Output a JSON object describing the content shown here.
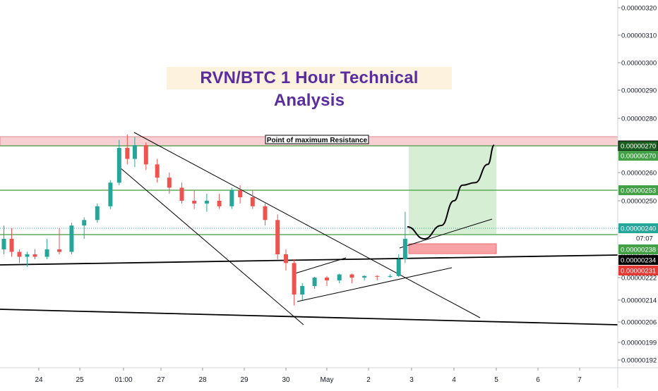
{
  "chart_data": {
    "type": "candlestick",
    "title": "RVN/BTC 1 Hour Technical Analysis",
    "annotation": "Point of maximum Resistance",
    "countdown": "07:07",
    "xlim_labels_note": "x axis ticks shown as printed",
    "x_ticks": [
      "24",
      "25",
      "01:00",
      "27",
      "28",
      "29",
      "30",
      "May",
      "2",
      "3",
      "4",
      "5",
      "6",
      "7"
    ],
    "y_ticks": [
      "0.00000320",
      "0.00000310",
      "0.00000300",
      "0.00000290",
      "0.00000280",
      "0.00000270",
      "0.00000260",
      "0.00000250",
      "0.00000240",
      "0.00000230",
      "0.00000222",
      "0.00000214",
      "0.00000206",
      "0.00000199",
      "0.00000192"
    ],
    "price_labels": [
      {
        "text": "0.00000270",
        "style": "resistance-dark"
      },
      {
        "text": "0.00000270",
        "style": "green"
      },
      {
        "text": "0.00000253",
        "style": "green"
      },
      {
        "text": "0.00000240",
        "style": "teal"
      },
      {
        "text": "0.00000238",
        "style": "green"
      },
      {
        "text": "0.00000234",
        "style": "black"
      },
      {
        "text": "0.00000231",
        "style": "red"
      }
    ],
    "resistance_zone": [
      2.7e-06,
      2.7e-06
    ],
    "horizontal_levels": [
      2.7e-06,
      2.53e-06,
      2.4e-06,
      2.38e-06
    ],
    "current_price": 2.4e-06,
    "candles": [
      {
        "day": 23.1,
        "o": 2.38,
        "h": 2.41,
        "l": 2.36,
        "c": 2.39
      },
      {
        "day": 23.3,
        "o": 2.39,
        "h": 2.4,
        "l": 2.35,
        "c": 2.37
      },
      {
        "day": 23.5,
        "o": 2.37,
        "h": 2.38,
        "l": 2.33,
        "c": 2.35
      },
      {
        "day": 23.7,
        "o": 2.35,
        "h": 2.37,
        "l": 2.32,
        "c": 2.36
      },
      {
        "day": 23.9,
        "o": 2.36,
        "h": 2.38,
        "l": 2.34,
        "c": 2.35
      },
      {
        "day": 24.2,
        "o": 2.35,
        "h": 2.39,
        "l": 2.34,
        "c": 2.38
      },
      {
        "day": 24.5,
        "o": 2.38,
        "h": 2.4,
        "l": 2.36,
        "c": 2.37
      },
      {
        "day": 24.8,
        "o": 2.37,
        "h": 2.42,
        "l": 2.36,
        "c": 2.41
      },
      {
        "day": 25.1,
        "o": 2.41,
        "h": 2.44,
        "l": 2.39,
        "c": 2.43
      },
      {
        "day": 25.4,
        "o": 2.43,
        "h": 2.49,
        "l": 2.42,
        "c": 2.48
      },
      {
        "day": 25.7,
        "o": 2.48,
        "h": 2.57,
        "l": 2.47,
        "c": 2.56
      },
      {
        "day": 25.9,
        "o": 2.56,
        "h": 2.72,
        "l": 2.55,
        "c": 2.69
      },
      {
        "day": 26.1,
        "o": 2.69,
        "h": 2.74,
        "l": 2.63,
        "c": 2.65
      },
      {
        "day": 26.3,
        "o": 2.65,
        "h": 2.73,
        "l": 2.62,
        "c": 2.7
      },
      {
        "day": 26.6,
        "o": 2.7,
        "h": 2.71,
        "l": 2.61,
        "c": 2.63
      },
      {
        "day": 26.9,
        "o": 2.63,
        "h": 2.65,
        "l": 2.56,
        "c": 2.58
      },
      {
        "day": 27.2,
        "o": 2.58,
        "h": 2.6,
        "l": 2.52,
        "c": 2.54
      },
      {
        "day": 27.5,
        "o": 2.54,
        "h": 2.56,
        "l": 2.49,
        "c": 2.5
      },
      {
        "day": 27.8,
        "o": 2.5,
        "h": 2.53,
        "l": 2.47,
        "c": 2.49
      },
      {
        "day": 28.1,
        "o": 2.49,
        "h": 2.52,
        "l": 2.46,
        "c": 2.5
      },
      {
        "day": 28.4,
        "o": 2.5,
        "h": 2.52,
        "l": 2.47,
        "c": 2.48
      },
      {
        "day": 28.7,
        "o": 2.48,
        "h": 2.54,
        "l": 2.47,
        "c": 2.53
      },
      {
        "day": 28.9,
        "o": 2.53,
        "h": 2.55,
        "l": 2.49,
        "c": 2.51
      },
      {
        "day": 29.2,
        "o": 2.51,
        "h": 2.53,
        "l": 2.47,
        "c": 2.48
      },
      {
        "day": 29.5,
        "o": 2.48,
        "h": 2.49,
        "l": 2.41,
        "c": 2.43
      },
      {
        "day": 29.8,
        "o": 2.43,
        "h": 2.45,
        "l": 2.34,
        "c": 2.36
      },
      {
        "day": 30.0,
        "o": 2.36,
        "h": 2.38,
        "l": 2.31,
        "c": 2.33
      },
      {
        "day": 30.2,
        "o": 2.33,
        "h": 2.34,
        "l": 2.12,
        "c": 2.16
      },
      {
        "day": 30.4,
        "o": 2.16,
        "h": 2.2,
        "l": 2.14,
        "c": 2.19
      },
      {
        "day": 30.7,
        "o": 2.19,
        "h": 2.23,
        "l": 2.18,
        "c": 2.22
      },
      {
        "day": 31.0,
        "o": 2.22,
        "h": 2.24,
        "l": 2.19,
        "c": 2.21
      },
      {
        "day": 31.3,
        "o": 2.21,
        "h": 2.27,
        "l": 2.2,
        "c": 2.26
      },
      {
        "day": 31.6,
        "o": 2.26,
        "h": 2.27,
        "l": 2.2,
        "c": 2.22
      },
      {
        "day": 31.9,
        "o": 2.22,
        "h": 2.25,
        "l": 2.21,
        "c": 2.24
      },
      {
        "day": 32.2,
        "o": 2.24,
        "h": 2.25,
        "l": 2.21,
        "c": 2.23
      },
      {
        "day": 32.5,
        "o": 2.23,
        "h": 2.26,
        "l": 2.22,
        "c": 2.24
      },
      {
        "day": 32.7,
        "o": 2.24,
        "h": 2.36,
        "l": 2.23,
        "c": 2.34
      },
      {
        "day": 32.85,
        "o": 2.34,
        "h": 2.46,
        "l": 2.33,
        "c": 2.39
      }
    ],
    "projection": [
      [
        32.9,
        2.405
      ],
      [
        33.3,
        2.39
      ],
      [
        33.7,
        2.41
      ],
      [
        34.0,
        2.5
      ],
      [
        34.2,
        2.55
      ],
      [
        34.5,
        2.56
      ],
      [
        34.8,
        2.63
      ],
      [
        34.95,
        2.7
      ]
    ]
  }
}
